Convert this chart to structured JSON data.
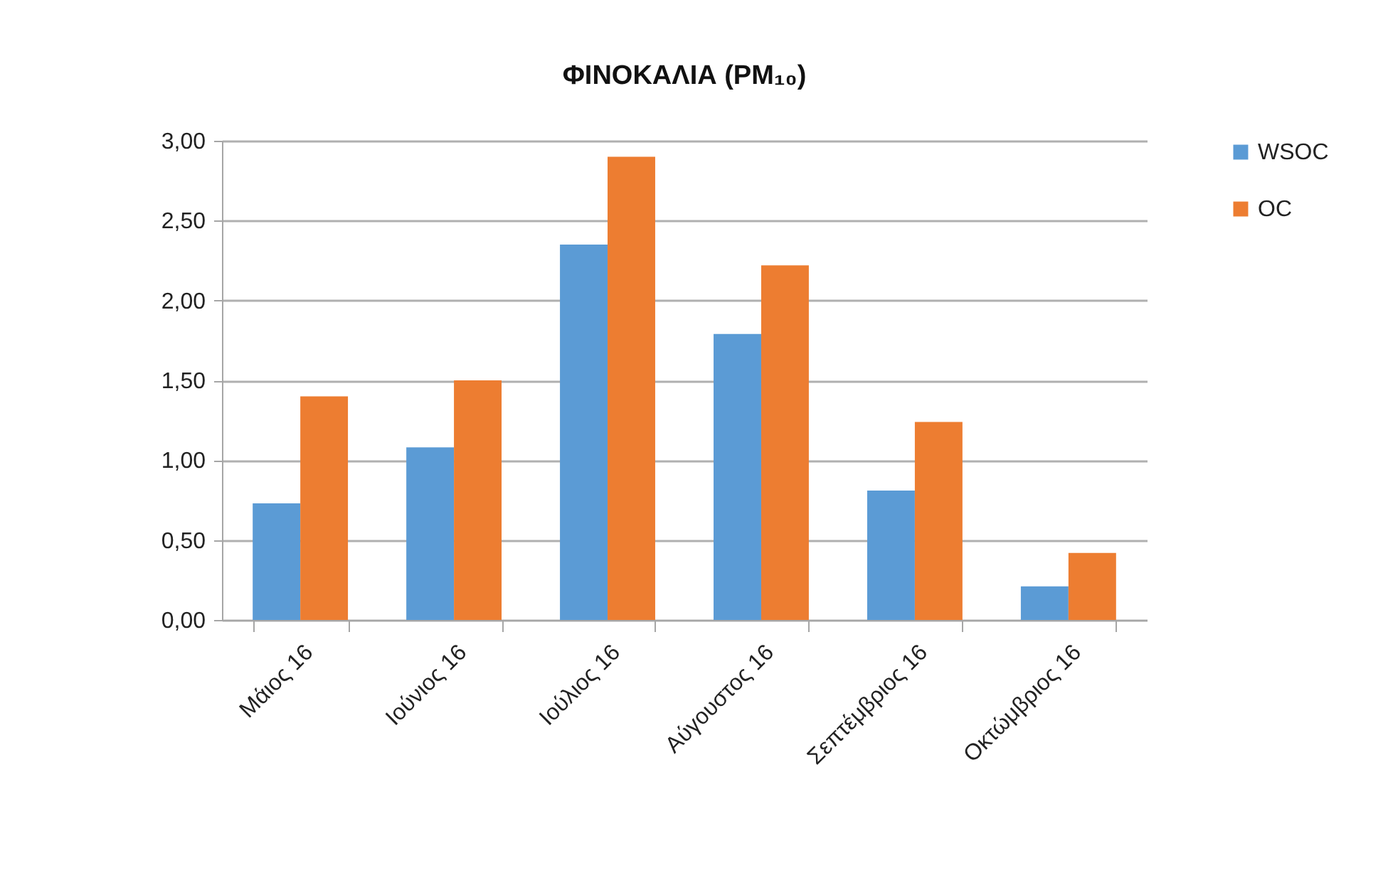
{
  "chart_data": {
    "type": "bar",
    "title": "ΦΙΝΟΚΑΛΙΑ (PM₁₀)",
    "categories": [
      "Μάιος 16",
      "Ιούνιος 16",
      "Ιούλιος 16",
      "Αύγουστος 16",
      "Σεπτέμβριος 16",
      "Οκτώμβριος 16"
    ],
    "series": [
      {
        "name": "WSOC",
        "color": "#5b9bd5",
        "values": [
          0.73,
          1.08,
          2.35,
          1.79,
          0.81,
          0.21
        ]
      },
      {
        "name": "OC",
        "color": "#ed7d31",
        "values": [
          1.4,
          1.5,
          2.9,
          2.22,
          1.24,
          0.42
        ]
      }
    ],
    "ylim": [
      0,
      3
    ],
    "yticks": [
      {
        "value": 0,
        "label": "0,00"
      },
      {
        "value": 0.5,
        "label": "0,50"
      },
      {
        "value": 1,
        "label": "1,00"
      },
      {
        "value": 1.5,
        "label": "1,50"
      },
      {
        "value": 2,
        "label": "2,00"
      },
      {
        "value": 2.5,
        "label": "2,50"
      },
      {
        "value": 3,
        "label": "3,00"
      }
    ],
    "grid": "y",
    "legend": "top right"
  }
}
